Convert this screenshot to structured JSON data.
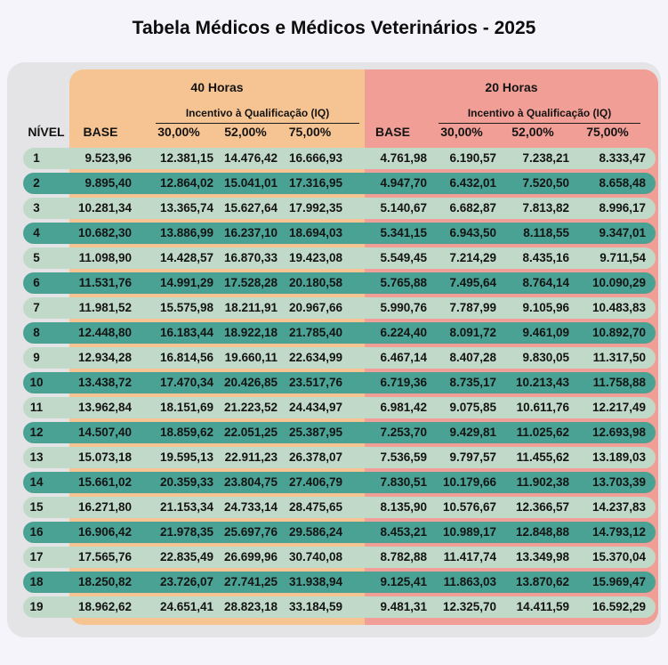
{
  "page": {
    "title": "Tabela Médicos e Médicos Veterinários - 2025"
  },
  "colors": {
    "page_bg": "#f5f4fb",
    "card_bg": "#e4e3e5",
    "section_40h_bg": "#f6c493",
    "section_20h_bg": "#f09e96",
    "row_light": "#c1d9c8",
    "row_dark": "#4aa294",
    "text": "#141414"
  },
  "table": {
    "level_header": "NÍVEL",
    "sections": [
      {
        "label": "40 Horas",
        "iq_label": "Incentivo à Qualificação (IQ)",
        "columns": [
          "BASE",
          "30,00%",
          "52,00%",
          "75,00%"
        ]
      },
      {
        "label": "20 Horas",
        "iq_label": "Incentivo à Qualificação (IQ)",
        "columns": [
          "BASE",
          "30,00%",
          "52,00%",
          "75,00%"
        ]
      }
    ],
    "rows": [
      {
        "level": "1",
        "values": [
          "9.523,96",
          "12.381,15",
          "14.476,42",
          "16.666,93",
          "4.761,98",
          "6.190,57",
          "7.238,21",
          "8.333,47"
        ]
      },
      {
        "level": "2",
        "values": [
          "9.895,40",
          "12.864,02",
          "15.041,01",
          "17.316,95",
          "4.947,70",
          "6.432,01",
          "7.520,50",
          "8.658,48"
        ]
      },
      {
        "level": "3",
        "values": [
          "10.281,34",
          "13.365,74",
          "15.627,64",
          "17.992,35",
          "5.140,67",
          "6.682,87",
          "7.813,82",
          "8.996,17"
        ]
      },
      {
        "level": "4",
        "values": [
          "10.682,30",
          "13.886,99",
          "16.237,10",
          "18.694,03",
          "5.341,15",
          "6.943,50",
          "8.118,55",
          "9.347,01"
        ]
      },
      {
        "level": "5",
        "values": [
          "11.098,90",
          "14.428,57",
          "16.870,33",
          "19.423,08",
          "5.549,45",
          "7.214,29",
          "8.435,16",
          "9.711,54"
        ]
      },
      {
        "level": "6",
        "values": [
          "11.531,76",
          "14.991,29",
          "17.528,28",
          "20.180,58",
          "5.765,88",
          "7.495,64",
          "8.764,14",
          "10.090,29"
        ]
      },
      {
        "level": "7",
        "values": [
          "11.981,52",
          "15.575,98",
          "18.211,91",
          "20.967,66",
          "5.990,76",
          "7.787,99",
          "9.105,96",
          "10.483,83"
        ]
      },
      {
        "level": "8",
        "values": [
          "12.448,80",
          "16.183,44",
          "18.922,18",
          "21.785,40",
          "6.224,40",
          "8.091,72",
          "9.461,09",
          "10.892,70"
        ]
      },
      {
        "level": "9",
        "values": [
          "12.934,28",
          "16.814,56",
          "19.660,11",
          "22.634,99",
          "6.467,14",
          "8.407,28",
          "9.830,05",
          "11.317,50"
        ]
      },
      {
        "level": "10",
        "values": [
          "13.438,72",
          "17.470,34",
          "20.426,85",
          "23.517,76",
          "6.719,36",
          "8.735,17",
          "10.213,43",
          "11.758,88"
        ]
      },
      {
        "level": "11",
        "values": [
          "13.962,84",
          "18.151,69",
          "21.223,52",
          "24.434,97",
          "6.981,42",
          "9.075,85",
          "10.611,76",
          "12.217,49"
        ]
      },
      {
        "level": "12",
        "values": [
          "14.507,40",
          "18.859,62",
          "22.051,25",
          "25.387,95",
          "7.253,70",
          "9.429,81",
          "11.025,62",
          "12.693,98"
        ]
      },
      {
        "level": "13",
        "values": [
          "15.073,18",
          "19.595,13",
          "22.911,23",
          "26.378,07",
          "7.536,59",
          "9.797,57",
          "11.455,62",
          "13.189,03"
        ]
      },
      {
        "level": "14",
        "values": [
          "15.661,02",
          "20.359,33",
          "23.804,75",
          "27.406,79",
          "7.830,51",
          "10.179,66",
          "11.902,38",
          "13.703,39"
        ]
      },
      {
        "level": "15",
        "values": [
          "16.271,80",
          "21.153,34",
          "24.733,14",
          "28.475,65",
          "8.135,90",
          "10.576,67",
          "12.366,57",
          "14.237,83"
        ]
      },
      {
        "level": "16",
        "values": [
          "16.906,42",
          "21.978,35",
          "25.697,76",
          "29.586,24",
          "8.453,21",
          "10.989,17",
          "12.848,88",
          "14.793,12"
        ]
      },
      {
        "level": "17",
        "values": [
          "17.565,76",
          "22.835,49",
          "26.699,96",
          "30.740,08",
          "8.782,88",
          "11.417,74",
          "13.349,98",
          "15.370,04"
        ]
      },
      {
        "level": "18",
        "values": [
          "18.250,82",
          "23.726,07",
          "27.741,25",
          "31.938,94",
          "9.125,41",
          "11.863,03",
          "13.870,62",
          "15.969,47"
        ]
      },
      {
        "level": "19",
        "values": [
          "18.962,62",
          "24.651,41",
          "28.823,18",
          "33.184,59",
          "9.481,31",
          "12.325,70",
          "14.411,59",
          "16.592,29"
        ]
      }
    ]
  }
}
